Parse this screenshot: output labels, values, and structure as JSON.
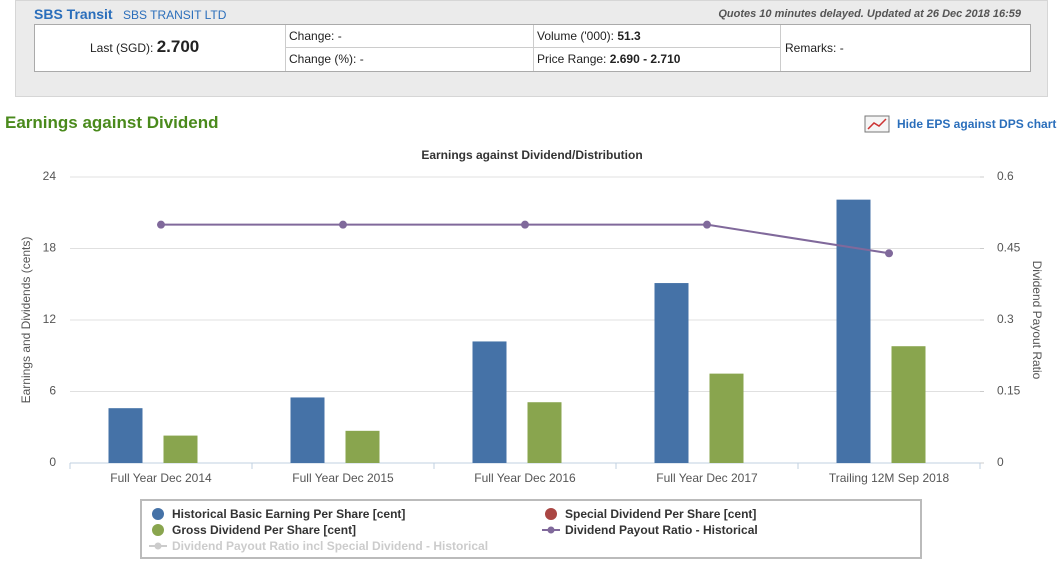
{
  "header": {
    "name": "SBS Transit",
    "company": "SBS TRANSIT LTD",
    "notice": "Quotes 10 minutes delayed. Updated at 26 Dec 2018 16:59",
    "last": {
      "label": "Last (SGD):",
      "value": "2.700"
    },
    "change": {
      "label": "Change:",
      "value": "-"
    },
    "change_pct": {
      "label": "Change (%):",
      "value": "-"
    },
    "volume": {
      "label": "Volume ('000):",
      "value": "51.3"
    },
    "price_range": {
      "label": "Price Range:",
      "value": "2.690 - 2.710"
    },
    "remarks": {
      "label": "Remarks:",
      "value": "-"
    }
  },
  "section_title": "Earnings against Dividend",
  "toggle_link": "Hide EPS against DPS chart",
  "chart_data": {
    "type": "bar",
    "title": "Earnings against Dividend/Distribution",
    "y_label": "Earnings and Dividends (cents)",
    "y2_label": "Dividend Payout Ratio",
    "categories": [
      "Full Year Dec 2014",
      "Full Year Dec 2015",
      "Full Year Dec 2016",
      "Full Year Dec 2017",
      "Trailing 12M Sep 2018"
    ],
    "series": [
      {
        "name": "Historical Basic Earning Per Share [cent]",
        "type": "bar",
        "color": "#4572a7",
        "values": [
          4.6,
          5.5,
          10.2,
          15.1,
          22.1
        ]
      },
      {
        "name": "Special Dividend Per Share [cent]",
        "type": "bar",
        "color": "#aa4643",
        "values": [
          null,
          null,
          null,
          null,
          null
        ]
      },
      {
        "name": "Gross Dividend Per Share [cent]",
        "type": "bar",
        "color": "#89a54e",
        "values": [
          2.3,
          2.7,
          5.1,
          7.5,
          9.8
        ]
      },
      {
        "name": "Dividend Payout Ratio - Historical",
        "type": "line",
        "axis": "y2",
        "color": "#80699b",
        "values": [
          0.5,
          0.5,
          0.5,
          0.5,
          0.44
        ]
      },
      {
        "name": "Dividend Payout Ratio incl Special Dividend - Historical",
        "type": "line",
        "axis": "y2",
        "color": "#cccccc",
        "visible": false,
        "values": [
          null,
          null,
          null,
          null,
          null
        ]
      }
    ],
    "ylim": [
      0,
      24
    ],
    "yticks": [
      0,
      6,
      12,
      18,
      24
    ],
    "y2lim": [
      0,
      0.6
    ],
    "y2ticks": [
      0,
      0.15,
      0.3,
      0.45,
      0.6
    ],
    "grid": true
  }
}
